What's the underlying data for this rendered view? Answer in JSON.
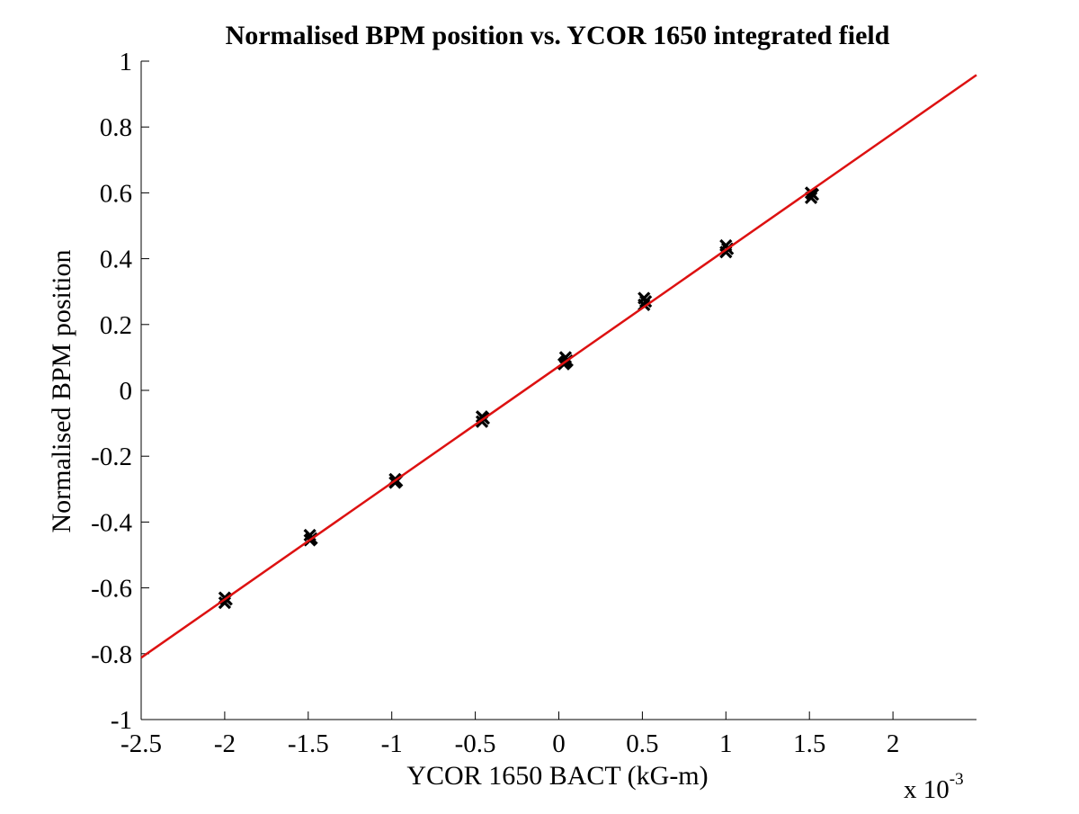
{
  "chart_data": {
    "type": "scatter",
    "title": "Normalised BPM position vs. YCOR 1650 integrated field",
    "xlabel": "YCOR 1650 BACT (kG-m)",
    "ylabel": "Normalised BPM position",
    "x_multiplier_label": "x 10",
    "x_multiplier_exponent": "-3",
    "xlim": [
      -2.5,
      2.5
    ],
    "ylim": [
      -1,
      1
    ],
    "x_ticks": [
      -2.5,
      -2,
      -1.5,
      -1,
      -0.5,
      0,
      0.5,
      1,
      1.5,
      2
    ],
    "x_tick_labels": [
      "-2.5",
      "-2",
      "-1.5",
      "-1",
      "-0.5",
      "0",
      "0.5",
      "1",
      "1.5",
      "2"
    ],
    "y_ticks": [
      -1,
      -0.8,
      -0.6,
      -0.4,
      -0.2,
      0,
      0.2,
      0.4,
      0.6,
      0.8,
      1
    ],
    "y_tick_labels": [
      "-1",
      "-0.8",
      "-0.6",
      "-0.4",
      "-0.2",
      "0",
      "0.2",
      "0.4",
      "0.6",
      "0.8",
      "1"
    ],
    "grid": false,
    "series": [
      {
        "marker": "x",
        "color": "#000000",
        "points": [
          [
            -2.0,
            -0.63
          ],
          [
            -2.0,
            -0.645
          ],
          [
            -1.99,
            -0.635
          ],
          [
            -1.49,
            -0.44
          ],
          [
            -1.49,
            -0.455
          ],
          [
            -1.48,
            -0.45
          ],
          [
            -0.98,
            -0.27
          ],
          [
            -0.98,
            -0.28
          ],
          [
            -0.97,
            -0.275
          ],
          [
            -0.46,
            -0.08
          ],
          [
            -0.46,
            -0.095
          ],
          [
            -0.45,
            -0.085
          ],
          [
            0.03,
            0.08
          ],
          [
            0.04,
            0.1
          ],
          [
            0.04,
            0.085
          ],
          [
            0.05,
            0.09
          ],
          [
            0.51,
            0.26
          ],
          [
            0.51,
            0.28
          ],
          [
            0.52,
            0.27
          ],
          [
            1.0,
            0.42
          ],
          [
            1.0,
            0.44
          ],
          [
            1.01,
            0.43
          ],
          [
            1.51,
            0.585
          ],
          [
            1.51,
            0.6
          ],
          [
            1.52,
            0.595
          ]
        ]
      },
      {
        "type": "line",
        "color": "#dd1111",
        "x": [
          -2.5,
          2.5
        ],
        "y": [
          -0.812,
          0.958
        ]
      }
    ]
  }
}
